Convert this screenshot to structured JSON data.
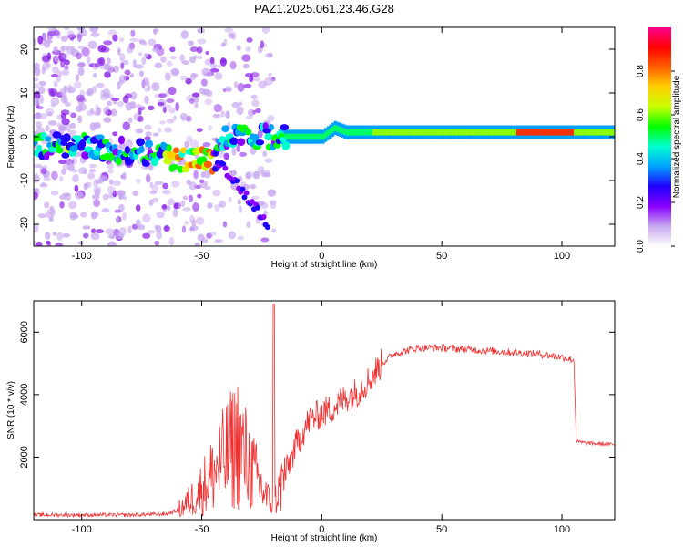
{
  "title": "PAZ1.2025.061.23.46.G28",
  "chart_data": [
    {
      "type": "heatmap",
      "xlabel": "Height of straight line (km)",
      "ylabel": "Frequency (Hz)",
      "xlim": [
        -120,
        122
      ],
      "ylim": [
        -25,
        25
      ],
      "xticks": [
        -100,
        -50,
        0,
        50,
        100
      ],
      "yticks": [
        -20,
        -10,
        0,
        10,
        20
      ],
      "colorbar": {
        "label": "Normalized spectral amplitude",
        "range": [
          0,
          1
        ],
        "ticks": [
          0.0,
          0.2,
          0.4,
          0.6,
          0.8
        ],
        "tick_labels": [
          "0.0",
          "0.2",
          "0.4",
          "0.6",
          "0.8"
        ],
        "colormap": [
          "#ffffff",
          "#c8a8f0",
          "#8a00ff",
          "#2000ff",
          "#00a0ff",
          "#00ffd0",
          "#00ff00",
          "#c8ff00",
          "#ffd000",
          "#ff6000",
          "#ff0000",
          "#ff0090"
        ]
      },
      "ridge": {
        "x": [
          -120,
          -100,
          -85,
          -70,
          -60,
          -50,
          -45,
          -40,
          -35,
          -30,
          -25,
          -20,
          -15,
          -10,
          -5,
          0,
          5,
          10,
          20,
          40,
          60,
          80,
          100,
          122
        ],
        "y": [
          -2,
          -2,
          -3,
          -4,
          -5,
          -5,
          -6,
          0,
          0,
          -1,
          0,
          0,
          0,
          0,
          0,
          0,
          2,
          1,
          1,
          1,
          1,
          1,
          1,
          1
        ]
      },
      "grid": false,
      "legend": "none"
    },
    {
      "type": "line",
      "xlabel": "Height of straight line (km)",
      "ylabel": "SNR (10 * v/v)",
      "xlim": [
        -120,
        122
      ],
      "ylim": [
        0,
        7000
      ],
      "xticks": [
        -100,
        -50,
        0,
        50,
        100
      ],
      "yticks": [
        2000,
        4000,
        6000
      ],
      "color": "#f03030",
      "series": [
        {
          "x": [
            -120,
            -100,
            -80,
            -65,
            -60,
            -55,
            -50,
            -45,
            -40,
            -35,
            -30,
            -25,
            -22,
            -20,
            -15,
            -10,
            -5,
            0,
            5,
            10,
            15,
            20,
            25,
            30,
            40,
            50,
            60,
            70,
            80,
            90,
            95,
            100,
            105,
            106,
            110,
            122
          ],
          "y": [
            150,
            150,
            150,
            180,
            300,
            600,
            1000,
            1500,
            2000,
            2500,
            1700,
            1000,
            600,
            500,
            1500,
            2500,
            3200,
            3400,
            3600,
            3900,
            4100,
            4500,
            5000,
            5300,
            5500,
            5500,
            5450,
            5400,
            5350,
            5300,
            5250,
            5200,
            5100,
            2500,
            2450,
            2400
          ]
        }
      ],
      "grid": false,
      "legend": "none"
    }
  ]
}
